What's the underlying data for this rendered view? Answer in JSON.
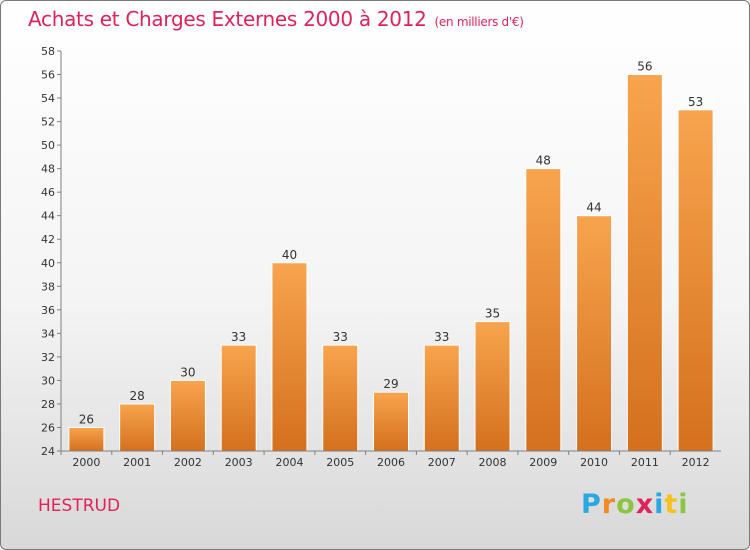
{
  "chart_data": {
    "type": "bar",
    "title": "Achats et Charges Externes 2000 à 2012",
    "subtitle": "(en milliers d'€)",
    "categories": [
      "2000",
      "2001",
      "2002",
      "2003",
      "2004",
      "2005",
      "2006",
      "2007",
      "2008",
      "2009",
      "2010",
      "2011",
      "2012"
    ],
    "values": [
      26,
      28,
      30,
      33,
      40,
      33,
      29,
      33,
      35,
      48,
      44,
      56,
      53
    ],
    "ylim": [
      24,
      58
    ],
    "yticks": [
      24,
      26,
      28,
      30,
      32,
      34,
      36,
      38,
      40,
      42,
      44,
      46,
      48,
      50,
      52,
      54,
      56,
      58
    ],
    "xlabel": "",
    "ylabel": "",
    "grid": false,
    "bar_color_top": "#f8a44e",
    "bar_color_bottom": "#d4701e"
  },
  "footer": {
    "commune": "HESTRUD",
    "logo_text": "Proxiti"
  },
  "colors": {
    "title": "#e0225a",
    "axis": "#808080"
  }
}
